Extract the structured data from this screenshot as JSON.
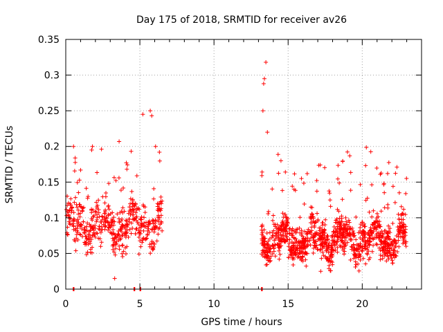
{
  "chart_data": {
    "type": "scatter",
    "title": "Day 175 of 2018, SRMTID for receiver av26",
    "xlabel": "GPS time / hours",
    "ylabel": "SRMTID / TECUs",
    "xlim": [
      0,
      24
    ],
    "ylim": [
      0,
      0.35
    ],
    "xticks": [
      0,
      5,
      10,
      15,
      20
    ],
    "xtick_labels": [
      "0",
      "5",
      "10",
      "15",
      "20"
    ],
    "yticks": [
      0,
      0.05,
      0.1,
      0.15,
      0.2,
      0.25,
      0.3,
      0.35
    ],
    "ytick_labels": [
      "0",
      "0.05",
      "0.1",
      "0.15",
      "0.2",
      "0.25",
      "0.3",
      "0.35"
    ],
    "grid": true,
    "marker": "plus",
    "series": [
      {
        "name": "SRMTID",
        "color": "#ff0000",
        "segments": [
          {
            "x_start": 0.0,
            "x_end": 6.5,
            "count": 500,
            "y_mean": 0.09,
            "y_spread": 0.03
          },
          {
            "x_start": 13.2,
            "x_end": 23.0,
            "count": 1100,
            "y_mean": 0.07,
            "y_spread": 0.025
          }
        ],
        "notable_points": [
          {
            "x": 13.5,
            "y": 0.318
          },
          {
            "x": 13.4,
            "y": 0.295
          },
          {
            "x": 13.35,
            "y": 0.288
          },
          {
            "x": 13.3,
            "y": 0.25
          },
          {
            "x": 5.7,
            "y": 0.25
          },
          {
            "x": 5.2,
            "y": 0.245
          },
          {
            "x": 5.8,
            "y": 0.243
          },
          {
            "x": 13.6,
            "y": 0.22
          },
          {
            "x": 3.6,
            "y": 0.207
          },
          {
            "x": 1.8,
            "y": 0.2
          },
          {
            "x": 1.75,
            "y": 0.195
          },
          {
            "x": 3.3,
            "y": 0.015
          },
          {
            "x": 15.9,
            "y": 0.155
          },
          {
            "x": 22.5,
            "y": 0.135
          },
          {
            "x": 17.2,
            "y": 0.025
          }
        ],
        "zero_points": [
          0.5,
          4.6,
          5.0,
          13.2
        ]
      }
    ]
  }
}
